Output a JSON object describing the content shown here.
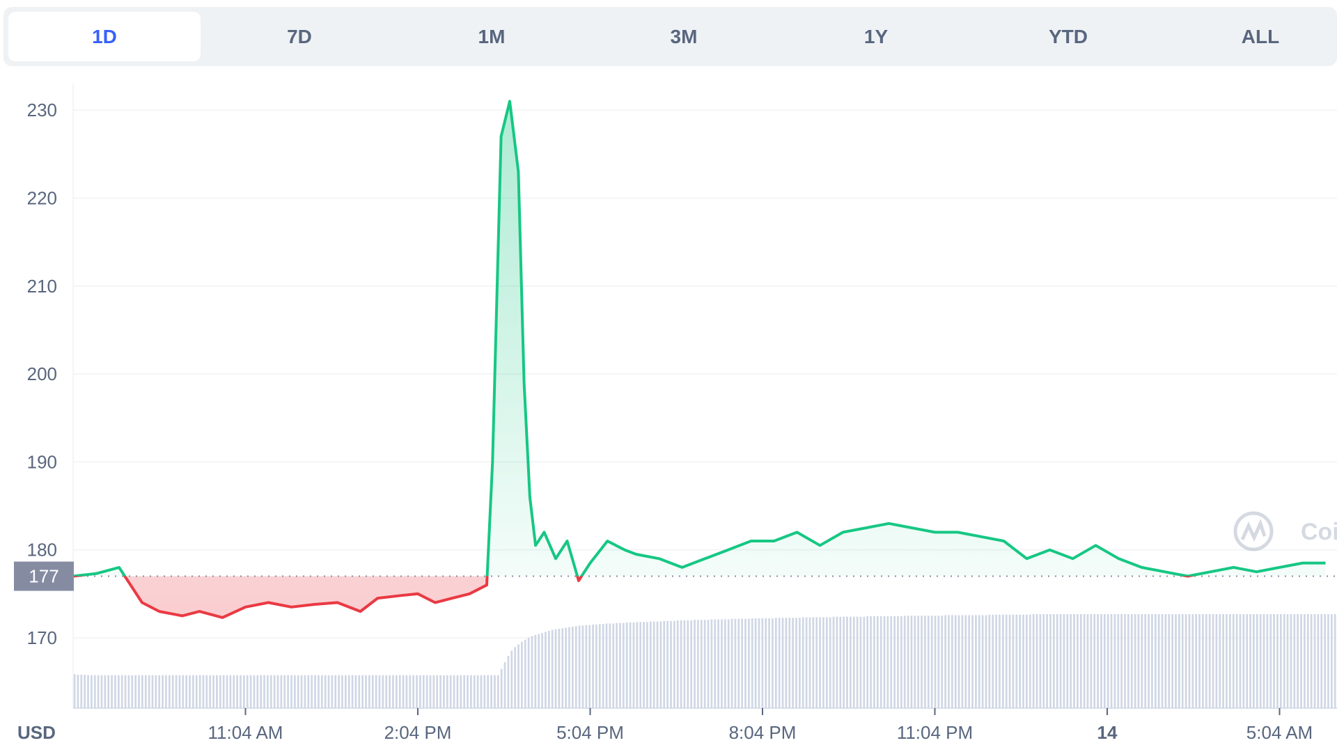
{
  "tabs": [
    {
      "label": "1D",
      "active": true
    },
    {
      "label": "7D",
      "active": false
    },
    {
      "label": "1M",
      "active": false
    },
    {
      "label": "3M",
      "active": false
    },
    {
      "label": "1Y",
      "active": false
    },
    {
      "label": "YTD",
      "active": false
    },
    {
      "label": "ALL",
      "active": false
    }
  ],
  "watermark": "Coi",
  "colors": {
    "up": "#16c784",
    "down": "#ea3943",
    "volume": "#cfd6e4",
    "grid": "#eff2f5",
    "base_label_bg": "#858ca2"
  },
  "chart_data": {
    "type": "area",
    "currency_label": "USD",
    "base_value": 177,
    "base_label": "177",
    "ylim": [
      162,
      235
    ],
    "y_ticks": [
      170,
      180,
      190,
      200,
      210,
      220,
      230
    ],
    "x_tick_labels": [
      "11:04 AM",
      "2:04 PM",
      "5:04 PM",
      "8:04 PM",
      "11:04 PM",
      "14",
      "5:04 AM"
    ],
    "x_tick_positions_hours": [
      3,
      6,
      9,
      12,
      15,
      18,
      21
    ],
    "grid": true,
    "series": [
      {
        "x": [
          0,
          0.4,
          0.8,
          1.2,
          1.5,
          1.9,
          2.2,
          2.6,
          3.0,
          3.4,
          3.8,
          4.2,
          4.6,
          5.0,
          5.3,
          5.7,
          6.0,
          6.3,
          6.6,
          6.9,
          7.2,
          7.3,
          7.45,
          7.6,
          7.75,
          7.85,
          7.95,
          8.05,
          8.2,
          8.4,
          8.6,
          8.8,
          9.0,
          9.3,
          9.6,
          9.8,
          10.2,
          10.6,
          11.0,
          11.4,
          11.8,
          12.2,
          12.6,
          13.0,
          13.4,
          13.8,
          14.2,
          14.6,
          15.0,
          15.4,
          15.8,
          16.2,
          16.6,
          17.0,
          17.4,
          17.8,
          18.2,
          18.6,
          19.0,
          19.4,
          19.8,
          20.2,
          20.6,
          21.0,
          21.4,
          21.8
        ],
        "y": [
          177,
          177.3,
          178,
          174,
          173,
          172.5,
          173,
          172.3,
          173.5,
          174,
          173.5,
          173.8,
          174,
          173,
          174.5,
          174.8,
          175,
          174,
          174.5,
          175,
          176,
          190,
          227,
          231,
          223,
          199,
          186,
          180.5,
          182,
          179,
          181,
          176.5,
          178.5,
          181,
          180,
          179.5,
          179,
          178,
          179,
          180,
          181,
          181,
          182,
          180.5,
          182,
          182.5,
          183,
          182.5,
          182,
          182,
          181.5,
          181,
          179,
          180,
          179,
          180.5,
          179,
          178,
          177.5,
          177,
          177.5,
          178,
          177.5,
          178,
          178.5,
          178.5
        ]
      }
    ],
    "volume": [
      6.5,
      6.4,
      6.4,
      6.4,
      6.3,
      6.3,
      6.3,
      6.3,
      6.3,
      6.3,
      6.3,
      6.3,
      6.3,
      6.3,
      6.3,
      6.3,
      6.3,
      6.3,
      6.3,
      6.3,
      6.3,
      6.3,
      6.3,
      6.3,
      6.3,
      6.3,
      6.3,
      6.3,
      6.3,
      6.3,
      6.3,
      6.3,
      6.3,
      6.3,
      6.3,
      6.3,
      6.3,
      6.3,
      6.3,
      6.3,
      6.3,
      6.3,
      6.3,
      6.3,
      6.3,
      6.3,
      6.3,
      6.3,
      6.3,
      6.3,
      6.3,
      6.3,
      6.3,
      6.3,
      6.3,
      6.3,
      6.3,
      6.3,
      6.3,
      6.3,
      6.3,
      6.3,
      6.3,
      6.3,
      6.3,
      6.3,
      6.3,
      6.3,
      6.3,
      6.3,
      6.3,
      6.3,
      6.3,
      6.3,
      6.3,
      6.3,
      6.3,
      6.3,
      6.3,
      6.3,
      6.3,
      6.3,
      6.3,
      6.3,
      6.3,
      6.3,
      6.3,
      6.3,
      6.3,
      6.3,
      6.3,
      6.3,
      6.3,
      6.3,
      6.3,
      6.3,
      6.3,
      6.3,
      6.3,
      6.3,
      6.3,
      6.3,
      6.3,
      6.3,
      6.3,
      6.3,
      6.3,
      6.3,
      6.3,
      6.3,
      6.3,
      6.3,
      6.3,
      6.3,
      6.3,
      6.3,
      6.3,
      6.3,
      6.3,
      6.3,
      6.3,
      6.3,
      6.3,
      6.3,
      6.3,
      6.3,
      7.5,
      8.8,
      10,
      11,
      11.7,
      12.2,
      12.7,
      13.1,
      13.5,
      13.8,
      14,
      14.2,
      14.4,
      14.6,
      14.8,
      15,
      15.1,
      15.2,
      15.3,
      15.4,
      15.5,
      15.6,
      15.7,
      15.8,
      15.8,
      15.9,
      15.9,
      16,
      16,
      16.1,
      16.1,
      16.2,
      16.2,
      16.2,
      16.3,
      16.3,
      16.3,
      16.4,
      16.4,
      16.4,
      16.5,
      16.5,
      16.5,
      16.5,
      16.6,
      16.6,
      16.6,
      16.6,
      16.7,
      16.7,
      16.7,
      16.7,
      16.8,
      16.8,
      16.8,
      16.8,
      16.8,
      16.9,
      16.9,
      16.9,
      16.9,
      16.9,
      17,
      17,
      17,
      17,
      17,
      17,
      17.1,
      17.1,
      17.1,
      17.1,
      17.1,
      17.1,
      17.2,
      17.2,
      17.2,
      17.2,
      17.2,
      17.2,
      17.2,
      17.3,
      17.3,
      17.3,
      17.3,
      17.3,
      17.3,
      17.3,
      17.3,
      17.4,
      17.4,
      17.4,
      17.4,
      17.4,
      17.4,
      17.4,
      17.4,
      17.4,
      17.5,
      17.5,
      17.5,
      17.5,
      17.5,
      17.5,
      17.5,
      17.5,
      17.5,
      17.5,
      17.6,
      17.6,
      17.6,
      17.6,
      17.6,
      17.6,
      17.6,
      17.6,
      17.6,
      17.6,
      17.6,
      17.7,
      17.7,
      17.7,
      17.7,
      17.7,
      17.7,
      17.7,
      17.7,
      17.7,
      17.7,
      17.7,
      17.7,
      17.8,
      17.8,
      17.8,
      17.8,
      17.8,
      17.8,
      17.8,
      17.8,
      17.8,
      17.8,
      17.8,
      17.8,
      17.8,
      17.9,
      17.9,
      17.9,
      17.9,
      17.9,
      17.9,
      17.9,
      17.9,
      17.9,
      17.9,
      17.9,
      17.9,
      17.9,
      18,
      18,
      18,
      18,
      18,
      18,
      18,
      18,
      18,
      18,
      18,
      18,
      18,
      18,
      18,
      18,
      18,
      18,
      18,
      18,
      18,
      18,
      18,
      18,
      18,
      18,
      18,
      18,
      18,
      18,
      18,
      18,
      18,
      18,
      18,
      18,
      18,
      18,
      18,
      18,
      18,
      18,
      18,
      18,
      18,
      18,
      18,
      18,
      18,
      18,
      18,
      18,
      18,
      18,
      18,
      18,
      18,
      18,
      18,
      18,
      18,
      18,
      18,
      18,
      18,
      18,
      18,
      18,
      18,
      18,
      18,
      18,
      18,
      18,
      18,
      18,
      18,
      18,
      18,
      18,
      18,
      18,
      18,
      18,
      18,
      18,
      18,
      18,
      18,
      18
    ]
  }
}
